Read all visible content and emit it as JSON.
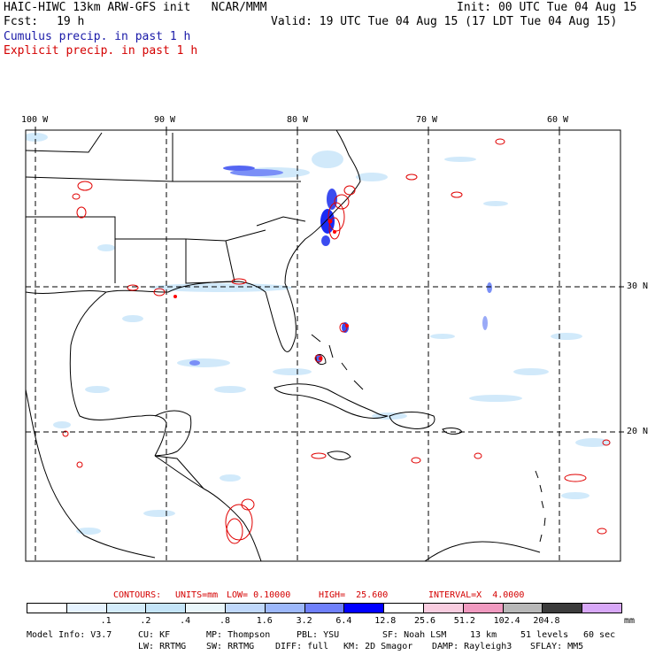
{
  "header": {
    "title": "HAIC-HIWC 13km ARW-GFS init   NCAR/MMM",
    "init": "Init: 00 UTC Tue 04 Aug 15",
    "fcst_label": "Fcst:",
    "fcst_value": "19 h",
    "valid": "Valid: 19 UTC Tue 04 Aug 15 (17 LDT Tue 04 Aug 15)",
    "cumulus": "Cumulus precip. in past 1 h",
    "explicit": "Explicit precip. in past 1 h"
  },
  "map": {
    "lon_labels": [
      "100 W",
      "90 W",
      "80 W",
      "70 W",
      "60 W"
    ],
    "lat_labels": [
      "30 N",
      "20 N"
    ]
  },
  "contours": {
    "label": "CONTOURS:",
    "units": "UNITS=mm",
    "low": "LOW= 0.10000",
    "high": "HIGH=  25.600",
    "interval": "INTERVAL=X  4.0000"
  },
  "colorbar": {
    "colors": [
      "#ffffff",
      "#e6f3ff",
      "#d4ecfb",
      "#c4e4f8",
      "#e9f6fb",
      "#c0d8fb",
      "#9db8fb",
      "#6f80fb",
      "#0000ff",
      "#ffffff",
      "#f9cde0",
      "#f09ac0",
      "#b8b8b8",
      "#3c3c3c",
      "#d8a8f8"
    ],
    "ticks": [
      ".1",
      ".2",
      ".4",
      ".8",
      "1.6",
      "3.2",
      "6.4",
      "12.8",
      "25.6",
      "51.2",
      "102.4",
      "204.8"
    ],
    "units": "mm"
  },
  "model_info": {
    "line1": [
      "Model Info: V3.7",
      "CU: KF",
      "MP: Thompson",
      "PBL: YSU",
      "SF: Noah LSM",
      "13 km",
      "51 levels",
      "60 sec"
    ],
    "line2": [
      "LW: RRTMG",
      "SW: RRTMG",
      "DIFF: full",
      "KM: 2D Smagor",
      "DAMP: Rayleigh3",
      "SFLAY: MM5"
    ]
  }
}
